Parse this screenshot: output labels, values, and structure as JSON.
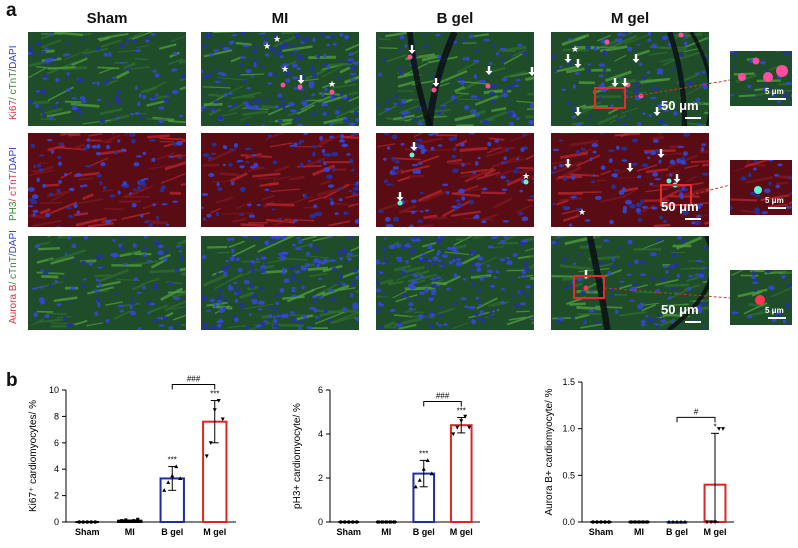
{
  "panel_a": {
    "letter": "a",
    "columns": [
      "Sham",
      "MI",
      "B gel",
      "M gel"
    ],
    "rows": [
      {
        "parts": [
          {
            "text": "Ki67",
            "color": "#e0303a"
          },
          {
            "text": "/ cTnT",
            "color": "#2e8b2e"
          },
          {
            "text": "/DAPI",
            "color": "#2c3fd0"
          }
        ],
        "bg": "green"
      },
      {
        "parts": [
          {
            "text": "PH3",
            "color": "#2e8b2e"
          },
          {
            "text": "/ cTnT",
            "color": "#e0303a"
          },
          {
            "text": "/DAPI",
            "color": "#2c3fd0"
          }
        ],
        "bg": "red"
      },
      {
        "parts": [
          {
            "text": "Aurora B",
            "color": "#e0303a"
          },
          {
            "text": "/ cTnT",
            "color": "#2e8b2e"
          },
          {
            "text": "/DAPI",
            "color": "#2c3fd0"
          }
        ],
        "bg": "green"
      }
    ],
    "scale_main": "50 μm",
    "scale_inset": "5 μm",
    "inset_box_color": "#e52b2b"
  },
  "panel_b": {
    "letter": "b"
  },
  "chart_data": [
    {
      "type": "bar",
      "categories": [
        "Sham",
        "MI",
        "B gel",
        "M gel"
      ],
      "values": [
        0.0,
        0.1,
        3.3,
        7.6
      ],
      "errors": [
        0.0,
        0.05,
        0.9,
        1.6
      ],
      "points": [
        [
          0,
          0,
          0,
          0,
          0
        ],
        [
          0.1,
          0.15,
          0.05,
          0.1,
          0.2
        ],
        [
          2.4,
          3.0,
          3.5,
          4.2,
          3.3
        ],
        [
          5.0,
          6.0,
          8.5,
          9.2,
          7.8
        ]
      ],
      "ylabel": "Ki67⁺ cardiomyocytes/ %",
      "ylim": [
        0,
        10
      ],
      "yticks": [
        0,
        2,
        4,
        6,
        8,
        10
      ],
      "sig": [
        "",
        "",
        "***",
        "***"
      ],
      "bracket": {
        "from": 2,
        "to": 3,
        "label": "###"
      },
      "bar_colors": [
        "#000000",
        "#000000",
        "#1f2e9e",
        "#e02424"
      ]
    },
    {
      "type": "bar",
      "categories": [
        "Sham",
        "MI",
        "B gel",
        "M gel"
      ],
      "values": [
        0.0,
        0.0,
        2.2,
        4.4
      ],
      "errors": [
        0.0,
        0.0,
        0.6,
        0.35
      ],
      "points": [
        [
          0,
          0,
          0,
          0,
          0
        ],
        [
          0,
          0,
          0,
          0,
          0
        ],
        [
          1.6,
          1.9,
          2.4,
          2.8,
          2.2
        ],
        [
          4.0,
          4.3,
          4.6,
          4.8,
          4.3
        ]
      ],
      "ylabel": "pH3+ cardiomyocyte/ %",
      "ylim": [
        0,
        6
      ],
      "yticks": [
        0,
        2,
        4,
        6
      ],
      "sig": [
        "",
        "",
        "***",
        "***"
      ],
      "bracket": {
        "from": 2,
        "to": 3,
        "label": "###"
      },
      "bar_colors": [
        "#000000",
        "#000000",
        "#1f2e9e",
        "#e02424"
      ]
    },
    {
      "type": "bar",
      "categories": [
        "Sham",
        "MI",
        "B gel",
        "M gel"
      ],
      "values": [
        0.0,
        0.0,
        0.0,
        0.4
      ],
      "errors": [
        0.0,
        0.0,
        0.0,
        0.55
      ],
      "points": [
        [
          0,
          0,
          0,
          0,
          0
        ],
        [
          0,
          0,
          0,
          0,
          0
        ],
        [
          0,
          0,
          0,
          0,
          0
        ],
        [
          0,
          0,
          0,
          1.0,
          1.0
        ]
      ],
      "ylabel": "Aurora B+ cardiomyocyte/ %",
      "ylim": [
        0,
        1.5
      ],
      "yticks": [
        0.0,
        0.5,
        1.0,
        1.5
      ],
      "ytick_labels": [
        "0.0",
        "0.5",
        "1.0",
        "1.5"
      ],
      "sig": [
        "",
        "",
        "",
        "*"
      ],
      "bracket": {
        "from": 2,
        "to": 3,
        "label": "#"
      },
      "bar_colors": [
        "#000000",
        "#000000",
        "#1f2e9e",
        "#e02424"
      ]
    }
  ]
}
